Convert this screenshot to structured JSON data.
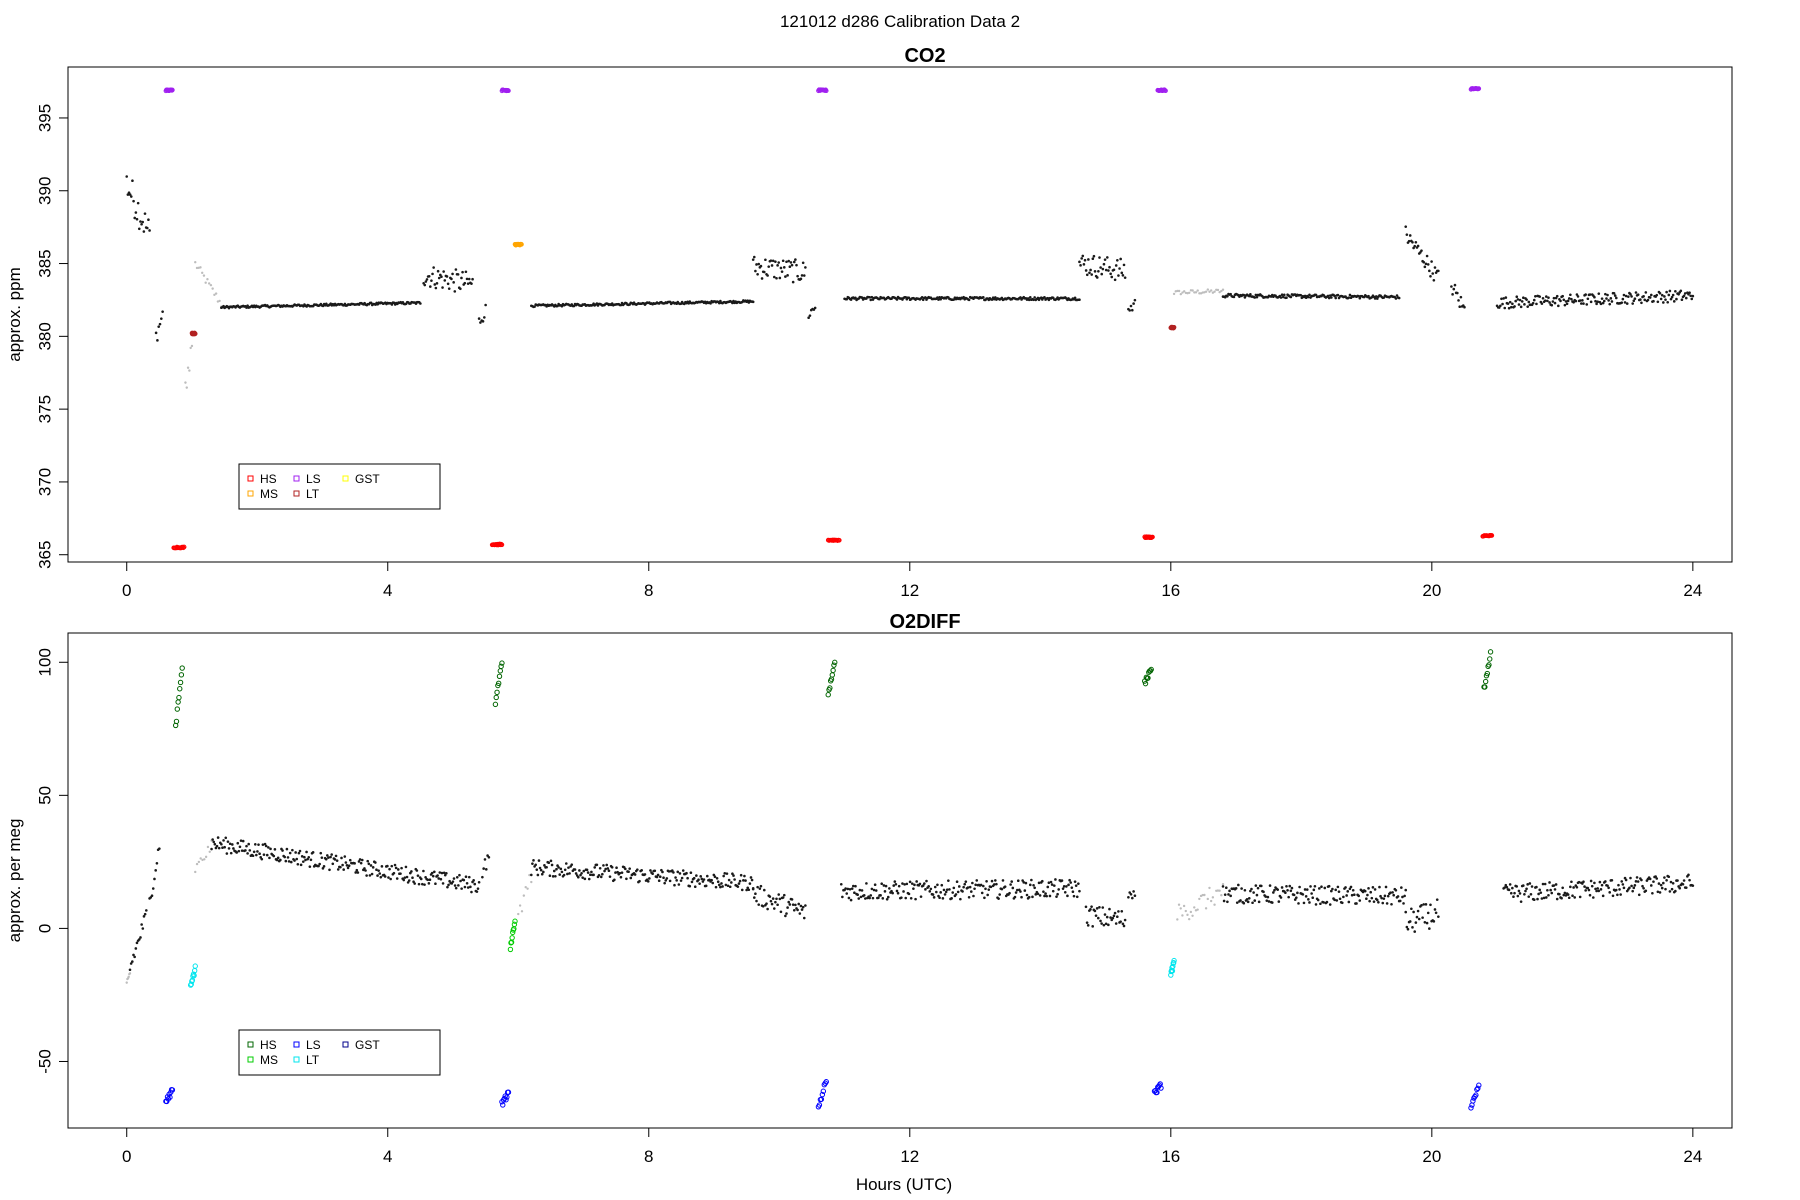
{
  "figure": {
    "title": "121012   d286   Calibration Data 2",
    "xlabel": "Hours (UTC)"
  },
  "chart_data": [
    {
      "type": "scatter",
      "title": "CO2",
      "xlabel": "",
      "ylabel": "approx. ppm",
      "xlim": [
        -0.9,
        24.6
      ],
      "ylim": [
        364.5,
        398.5
      ],
      "xticks": [
        0,
        4,
        8,
        12,
        16,
        20,
        24
      ],
      "yticks": [
        365,
        370,
        375,
        380,
        385,
        390,
        395
      ],
      "grid": false,
      "legend_position": "bottom-left",
      "legend": [
        {
          "label": "HS",
          "color": "#ff0000"
        },
        {
          "label": "MS",
          "color": "#ffa500"
        },
        {
          "label": "LS",
          "color": "#a020f0"
        },
        {
          "label": "LT",
          "color": "#b22222"
        },
        {
          "label": "GST",
          "color": "#ffff00"
        }
      ],
      "calibrations": [
        {
          "series": "LS",
          "color": "#a020f0",
          "x": [
            0.6,
            0.7
          ],
          "y": 396.9
        },
        {
          "series": "HS",
          "color": "#ff0000",
          "x": [
            0.72,
            0.88
          ],
          "y": 365.5
        },
        {
          "series": "LT",
          "color": "#b22222",
          "x": [
            1.0,
            1.05
          ],
          "y": 380.2
        },
        {
          "series": "LS",
          "color": "#a020f0",
          "x": [
            5.75,
            5.85
          ],
          "y": 396.9
        },
        {
          "series": "HS",
          "color": "#ff0000",
          "x": [
            5.6,
            5.75
          ],
          "y": 365.7
        },
        {
          "series": "MS",
          "color": "#ffa500",
          "x": [
            5.95,
            6.05
          ],
          "y": 386.3
        },
        {
          "series": "LS",
          "color": "#a020f0",
          "x": [
            10.6,
            10.72
          ],
          "y": 396.9
        },
        {
          "series": "HS",
          "color": "#ff0000",
          "x": [
            10.75,
            10.92
          ],
          "y": 366.0
        },
        {
          "series": "LS",
          "color": "#a020f0",
          "x": [
            15.8,
            15.92
          ],
          "y": 396.9
        },
        {
          "series": "HS",
          "color": "#ff0000",
          "x": [
            15.6,
            15.72
          ],
          "y": 366.2
        },
        {
          "series": "LT",
          "color": "#b22222",
          "x": [
            16.0,
            16.05
          ],
          "y": 380.6
        },
        {
          "series": "LS",
          "color": "#a020f0",
          "x": [
            20.6,
            20.72
          ],
          "y": 397.0
        },
        {
          "series": "HS",
          "color": "#ff0000",
          "x": [
            20.78,
            20.92
          ],
          "y": 366.3
        }
      ],
      "ambient_segments": [
        {
          "x": [
            0.0,
            0.35
          ],
          "y": [
            390.5,
            387.0
          ],
          "jitter": 1.2
        },
        {
          "x": [
            0.45,
            0.55
          ],
          "y": [
            380.0,
            381.5
          ],
          "jitter": 0.6
        },
        {
          "x": [
            1.45,
            4.5
          ],
          "y": [
            382.0,
            382.3
          ],
          "jitter": 0.08
        },
        {
          "x": [
            4.55,
            5.3
          ],
          "y": [
            384.2,
            383.6
          ],
          "jitter": 0.8
        },
        {
          "x": [
            5.4,
            5.5
          ],
          "y": [
            381.0,
            381.8
          ],
          "jitter": 0.5
        },
        {
          "x": [
            6.2,
            9.6
          ],
          "y": [
            382.1,
            382.4
          ],
          "jitter": 0.08
        },
        {
          "x": [
            9.6,
            10.4
          ],
          "y": [
            384.8,
            384.4
          ],
          "jitter": 0.8
        },
        {
          "x": [
            10.45,
            10.55
          ],
          "y": [
            381.5,
            382.0
          ],
          "jitter": 0.4
        },
        {
          "x": [
            11.0,
            14.6
          ],
          "y": [
            382.6,
            382.6
          ],
          "jitter": 0.1
        },
        {
          "x": [
            14.6,
            15.3
          ],
          "y": [
            385.0,
            384.5
          ],
          "jitter": 0.8
        },
        {
          "x": [
            15.35,
            15.45
          ],
          "y": [
            381.8,
            382.2
          ],
          "jitter": 0.4
        },
        {
          "x": [
            16.8,
            19.5
          ],
          "y": [
            382.8,
            382.7
          ],
          "jitter": 0.12
        },
        {
          "x": [
            19.6,
            20.1
          ],
          "y": [
            387.0,
            384.0
          ],
          "jitter": 0.6
        },
        {
          "x": [
            20.3,
            20.5
          ],
          "y": [
            383.5,
            381.8
          ],
          "jitter": 0.6
        },
        {
          "x": [
            21.0,
            24.0
          ],
          "y": [
            382.3,
            382.8
          ],
          "jitter": 0.4
        }
      ],
      "transition_segments": [
        {
          "x": [
            1.05,
            1.45
          ],
          "y": [
            385.0,
            382.2
          ],
          "jitter": 0.3
        },
        {
          "x": [
            16.05,
            16.8
          ],
          "y": [
            383.0,
            383.1
          ],
          "jitter": 0.15
        },
        {
          "x": [
            0.9,
            1.0
          ],
          "y": [
            376.5,
            379.5
          ],
          "jitter": 0.8
        }
      ]
    },
    {
      "type": "scatter",
      "title": "O2DIFF",
      "xlabel": "Hours (UTC)",
      "ylabel": "approx. per meg",
      "xlim": [
        -0.9,
        24.6
      ],
      "ylim": [
        -75,
        111
      ],
      "xticks": [
        0,
        4,
        8,
        12,
        16,
        20,
        24
      ],
      "yticks": [
        -50,
        0,
        50,
        100
      ],
      "grid": false,
      "legend_position": "bottom-left",
      "legend": [
        {
          "label": "HS",
          "color": "#006400"
        },
        {
          "label": "MS",
          "color": "#00cc00"
        },
        {
          "label": "LS",
          "color": "#0000ff"
        },
        {
          "label": "LT",
          "color": "#00e5ee"
        },
        {
          "label": "GST",
          "color": "#00008b"
        }
      ],
      "calibrations": [
        {
          "series": "HS",
          "color": "#006400",
          "x": [
            0.75,
            0.85
          ],
          "y": [
            76,
            98
          ]
        },
        {
          "series": "LS",
          "color": "#0000ff",
          "x": [
            0.6,
            0.7
          ],
          "y": [
            -65,
            -61
          ]
        },
        {
          "series": "LT",
          "color": "#00e5ee",
          "x": [
            0.98,
            1.05
          ],
          "y": [
            -22,
            -15
          ]
        },
        {
          "series": "HS",
          "color": "#006400",
          "x": [
            5.65,
            5.75
          ],
          "y": [
            85,
            100
          ]
        },
        {
          "series": "LS",
          "color": "#0000ff",
          "x": [
            5.75,
            5.85
          ],
          "y": [
            -66,
            -62
          ]
        },
        {
          "series": "MS",
          "color": "#00cc00",
          "x": [
            5.88,
            5.95
          ],
          "y": [
            -7,
            3
          ]
        },
        {
          "series": "HS",
          "color": "#006400",
          "x": [
            10.75,
            10.85
          ],
          "y": [
            88,
            100
          ]
        },
        {
          "series": "LS",
          "color": "#0000ff",
          "x": [
            10.6,
            10.72
          ],
          "y": [
            -67,
            -57
          ]
        },
        {
          "series": "HS",
          "color": "#006400",
          "x": [
            15.6,
            15.7
          ],
          "y": [
            92,
            98
          ]
        },
        {
          "series": "LS",
          "color": "#0000ff",
          "x": [
            15.75,
            15.85
          ],
          "y": [
            -62,
            -59
          ]
        },
        {
          "series": "LT",
          "color": "#00e5ee",
          "x": [
            16.0,
            16.05
          ],
          "y": [
            -17,
            -13
          ]
        },
        {
          "series": "HS",
          "color": "#006400",
          "x": [
            20.8,
            20.9
          ],
          "y": [
            90,
            103
          ]
        },
        {
          "series": "LS",
          "color": "#0000ff",
          "x": [
            20.6,
            20.72
          ],
          "y": [
            -68,
            -59
          ]
        }
      ],
      "ambient_segments": [
        {
          "x": [
            0.05,
            0.3
          ],
          "y": [
            -15,
            5
          ],
          "jitter": 3
        },
        {
          "x": [
            0.35,
            0.5
          ],
          "y": [
            10,
            31
          ],
          "jitter": 3
        },
        {
          "x": [
            1.3,
            5.4
          ],
          "y": [
            32,
            16
          ],
          "jitter": 3
        },
        {
          "x": [
            5.45,
            5.55
          ],
          "y": [
            22,
            26
          ],
          "jitter": 3
        },
        {
          "x": [
            6.2,
            9.6
          ],
          "y": [
            23,
            17
          ],
          "jitter": 3
        },
        {
          "x": [
            9.6,
            10.4
          ],
          "y": [
            13,
            6
          ],
          "jitter": 4
        },
        {
          "x": [
            10.95,
            14.6
          ],
          "y": [
            14,
            15
          ],
          "jitter": 3.5
        },
        {
          "x": [
            14.7,
            15.3
          ],
          "y": [
            5,
            3
          ],
          "jitter": 4
        },
        {
          "x": [
            15.35,
            15.45
          ],
          "y": [
            13,
            15
          ],
          "jitter": 3
        },
        {
          "x": [
            16.8,
            19.6
          ],
          "y": [
            13,
            12
          ],
          "jitter": 3.5
        },
        {
          "x": [
            19.6,
            20.1
          ],
          "y": [
            2,
            6
          ],
          "jitter": 5
        },
        {
          "x": [
            21.1,
            24.0
          ],
          "y": [
            13,
            17
          ],
          "jitter": 3.5
        }
      ],
      "transition_segments": [
        {
          "x": [
            1.05,
            1.3
          ],
          "y": [
            22,
            31
          ],
          "jitter": 2
        },
        {
          "x": [
            6.0,
            6.2
          ],
          "y": [
            5,
            20
          ],
          "jitter": 3
        },
        {
          "x": [
            16.1,
            16.8
          ],
          "y": [
            5,
            14
          ],
          "jitter": 4
        },
        {
          "x": [
            0.0,
            0.05
          ],
          "y": [
            -22,
            -17
          ],
          "jitter": 2
        }
      ]
    }
  ]
}
